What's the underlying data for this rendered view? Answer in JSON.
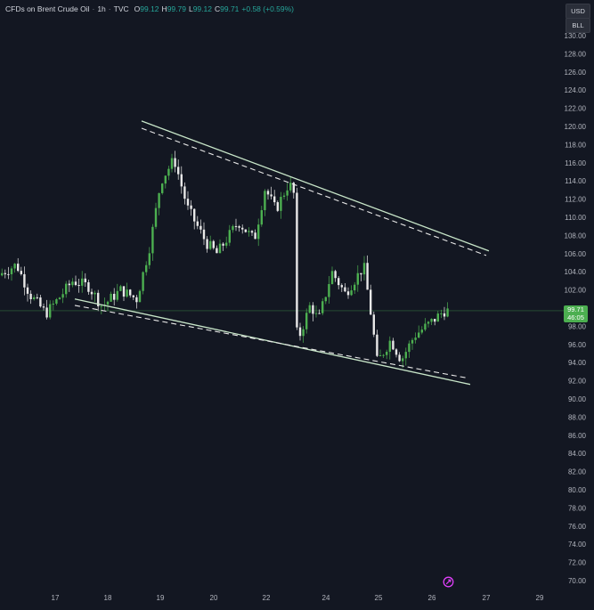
{
  "header": {
    "symbol": "CFDs on Brent Crude Oil",
    "interval": "1h",
    "source": "TVC",
    "open_label": "O",
    "open_value": "99.12",
    "high_label": "H",
    "high_value": "99.79",
    "low_label": "L",
    "low_value": "99.12",
    "close_label": "C",
    "close_value": "99.71",
    "change": "+0.58 (+0.59%)",
    "separator": "·"
  },
  "currency_badges": [
    "USD",
    "BLL"
  ],
  "last_price": {
    "value": "99.71",
    "countdown": "46:05"
  },
  "colors": {
    "background": "#131722",
    "up_candle": "#4caf50",
    "down_candle": "#e8e8e8",
    "trendline": "#c8e6c9",
    "axis_text": "#b2b5be",
    "price_line": "#4caf50",
    "logo": "#e040fb"
  },
  "chart_data": {
    "type": "candlestick",
    "title": "CFDs on Brent Crude Oil · 1h · TVC",
    "x_tick_labels": [
      "17",
      "18",
      "19",
      "20",
      "22",
      "24",
      "25",
      "26",
      "27",
      "29"
    ],
    "y_tick_labels": [
      "70.00",
      "72.00",
      "74.00",
      "76.00",
      "78.00",
      "80.00",
      "82.00",
      "84.00",
      "86.00",
      "88.00",
      "90.00",
      "92.00",
      "94.00",
      "96.00",
      "98.00",
      "100.00",
      "102.00",
      "104.00",
      "106.00",
      "108.00",
      "110.00",
      "112.00",
      "114.00",
      "116.00",
      "118.00",
      "120.00",
      "122.00",
      "124.00",
      "126.00",
      "128.00",
      "130.00"
    ],
    "ylim": [
      69.2,
      131.5
    ],
    "price_path": [
      {
        "x": 0.0,
        "y": 103.6
      },
      {
        "x": 0.35,
        "y": 104.8
      },
      {
        "x": 0.6,
        "y": 101.5
      },
      {
        "x": 0.9,
        "y": 99.4
      },
      {
        "x": 1.1,
        "y": 100.8
      },
      {
        "x": 1.4,
        "y": 103.0
      },
      {
        "x": 1.7,
        "y": 102.4
      },
      {
        "x": 1.95,
        "y": 100.2
      },
      {
        "x": 2.3,
        "y": 102.0
      },
      {
        "x": 2.6,
        "y": 101.0
      },
      {
        "x": 2.85,
        "y": 107.0
      },
      {
        "x": 3.05,
        "y": 114.0
      },
      {
        "x": 3.3,
        "y": 116.4
      },
      {
        "x": 3.55,
        "y": 111.0
      },
      {
        "x": 3.9,
        "y": 107.2
      },
      {
        "x": 4.1,
        "y": 106.0
      },
      {
        "x": 4.5,
        "y": 109.5
      },
      {
        "x": 4.8,
        "y": 107.5
      },
      {
        "x": 5.0,
        "y": 113.2
      },
      {
        "x": 5.2,
        "y": 110.8
      },
      {
        "x": 5.45,
        "y": 113.8
      },
      {
        "x": 5.55,
        "y": 112.4
      },
      {
        "x": 5.6,
        "y": 96.2
      },
      {
        "x": 5.85,
        "y": 100.4
      },
      {
        "x": 6.0,
        "y": 98.6
      },
      {
        "x": 6.25,
        "y": 104.0
      },
      {
        "x": 6.5,
        "y": 101.6
      },
      {
        "x": 6.85,
        "y": 104.6
      },
      {
        "x": 7.0,
        "y": 98.6
      },
      {
        "x": 7.1,
        "y": 94.0
      },
      {
        "x": 7.35,
        "y": 96.5
      },
      {
        "x": 7.55,
        "y": 94.3
      },
      {
        "x": 7.8,
        "y": 97.0
      },
      {
        "x": 8.1,
        "y": 98.4
      },
      {
        "x": 8.35,
        "y": 99.7
      }
    ],
    "trendlines": [
      {
        "name": "upper-solid",
        "style": "solid",
        "from": {
          "x": 2.65,
          "y": 120.6
        },
        "to": {
          "x": 9.15,
          "y": 106.3
        }
      },
      {
        "name": "upper-dashed",
        "style": "dashed",
        "from": {
          "x": 2.65,
          "y": 119.8
        },
        "to": {
          "x": 9.1,
          "y": 105.8
        }
      },
      {
        "name": "lower-solid",
        "style": "solid",
        "from": {
          "x": 1.4,
          "y": 101.0
        },
        "to": {
          "x": 8.8,
          "y": 91.6
        }
      },
      {
        "name": "lower-dashed",
        "style": "dashed",
        "from": {
          "x": 1.4,
          "y": 100.3
        },
        "to": {
          "x": 8.75,
          "y": 92.3
        }
      }
    ],
    "last_price": 99.71,
    "grid": false,
    "legend": "none"
  }
}
